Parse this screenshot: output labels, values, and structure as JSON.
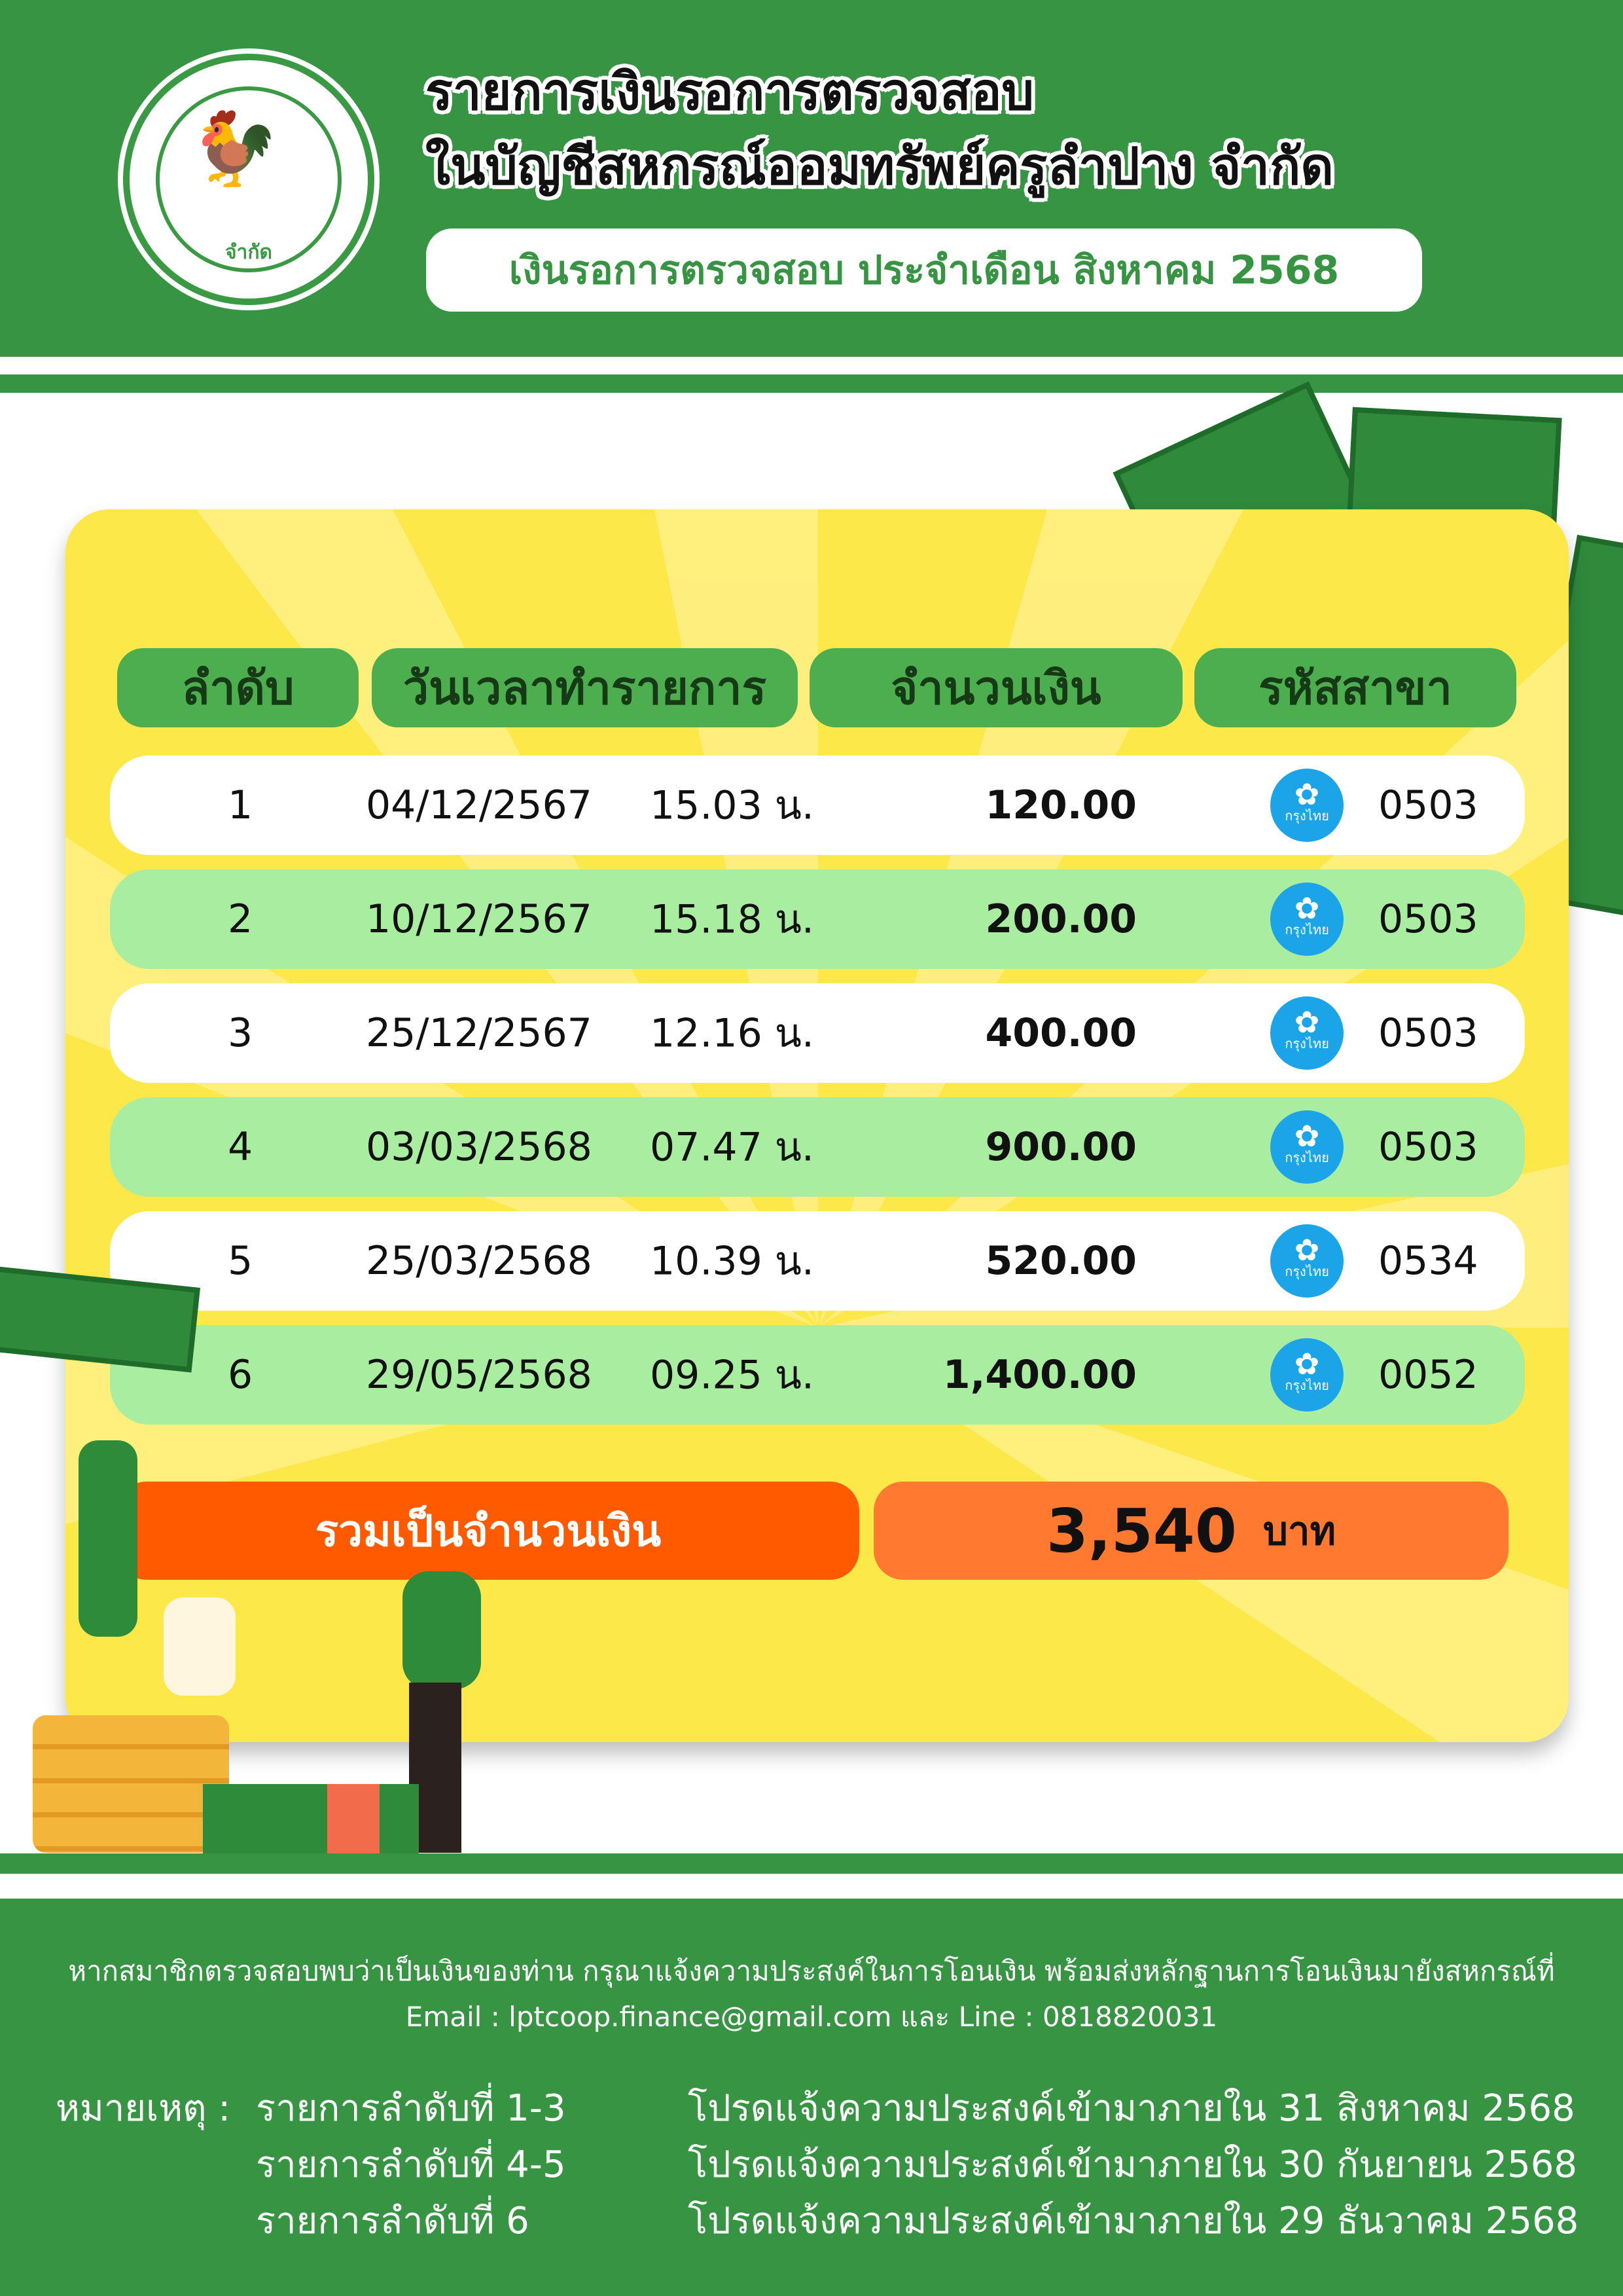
{
  "header": {
    "logo_text": "สหกรณ์ออมทรัพย์ครูลำปาง จำกัด",
    "title_line1": "รายการเงินรอการตรวจสอบ",
    "title_line2": "ในบัญชีสหกรณ์ออมทรัพย์ครูลำปาง จำกัด",
    "subtitle": "เงินรอการตรวจสอบ ประจำเดือน สิงหาคม 2568"
  },
  "table": {
    "columns": [
      "ลำดับ",
      "วันเวลาทำรายการ",
      "จำนวนเงิน",
      "รหัสสาขา"
    ],
    "bank_label": "กรุงไทย",
    "rows": [
      {
        "no": "1",
        "date": "04/12/2567",
        "time": "15.03 น.",
        "amount": "120.00",
        "branch": "0503"
      },
      {
        "no": "2",
        "date": "10/12/2567",
        "time": "15.18 น.",
        "amount": "200.00",
        "branch": "0503"
      },
      {
        "no": "3",
        "date": "25/12/2567",
        "time": "12.16 น.",
        "amount": "400.00",
        "branch": "0503"
      },
      {
        "no": "4",
        "date": "03/03/2568",
        "time": "07.47 น.",
        "amount": "900.00",
        "branch": "0503"
      },
      {
        "no": "5",
        "date": "25/03/2568",
        "time": "10.39 น.",
        "amount": "520.00",
        "branch": "0534"
      },
      {
        "no": "6",
        "date": "29/05/2568",
        "time": "09.25 น.",
        "amount": "1,400.00",
        "branch": "0052"
      }
    ],
    "total_label": "รวมเป็นจำนวนเงิน",
    "total_value": "3,540",
    "total_unit": "บาท"
  },
  "footer": {
    "line1": "หากสมาชิกตรวจสอบพบว่าเป็นเงินของท่าน กรุณาแจ้งความประสงค์ในการโอนเงิน พร้อมส่งหลักฐานการโอนเงินมายังสหกรณ์ที่",
    "line2": "Email : lptcoop.finance@gmail.com และ Line : 0818820031",
    "note_label": "หมายเหตุ :",
    "notes": [
      {
        "items": "รายการลำดับที่ 1-3",
        "message": "โปรดแจ้งความประสงค์เข้ามาภายใน 31 สิงหาคม 2568"
      },
      {
        "items": "รายการลำดับที่ 4-5",
        "message": "โปรดแจ้งความประสงค์เข้ามาภายใน 30 กันยายน 2568"
      },
      {
        "items": "รายการลำดับที่ 6",
        "message": "โปรดแจ้งความประสงค์เข้ามาภายใน 29 ธันวาคม 2568"
      }
    ]
  },
  "colors": {
    "green": "#379443",
    "row_alt": "#a8eda0",
    "total_left": "#ff5a00",
    "total_right": "#ff7a30",
    "card": "#fde84a"
  }
}
